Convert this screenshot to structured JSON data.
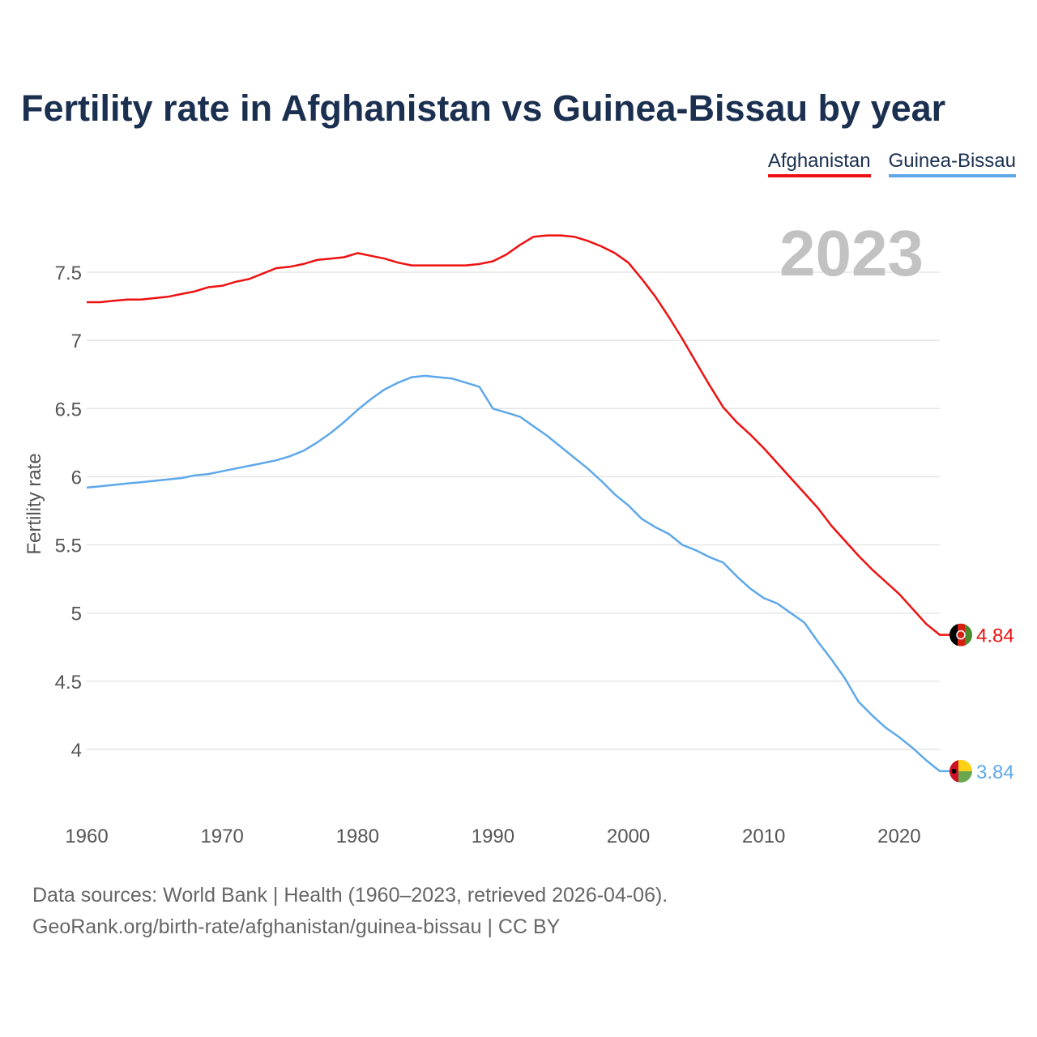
{
  "title": "Fertility rate in Afghanistan vs Guinea-Bissau by year",
  "year_badge": "2023",
  "legend": [
    {
      "label": "Afghanistan",
      "color": "#ee1111"
    },
    {
      "label": "Guinea-Bissau",
      "color": "#5ea8ea"
    }
  ],
  "footer": {
    "line1": "Data sources: World Bank | Health (1960–2023, retrieved 2026-04-06).",
    "line2": "GeoRank.org/birth-rate/afghanistan/guinea-bissau | CC BY"
  },
  "chart_data": {
    "type": "line",
    "title": "Fertility rate in Afghanistan vs Guinea-Bissau by year",
    "xlabel": "",
    "ylabel": "Fertility rate",
    "xlim": [
      1960,
      2023
    ],
    "ylim": [
      3.5,
      8.0
    ],
    "xticks": [
      1960,
      1970,
      1980,
      1990,
      2000,
      2010,
      2020
    ],
    "yticks": [
      4,
      4.5,
      5,
      5.5,
      6,
      6.5,
      7,
      7.5
    ],
    "ytick_labels": [
      "4",
      "4.5",
      "5",
      "5.5",
      "6",
      "6.5",
      "7",
      "7.5"
    ],
    "grid": true,
    "x": [
      1960,
      1961,
      1962,
      1963,
      1964,
      1965,
      1966,
      1967,
      1968,
      1969,
      1970,
      1971,
      1972,
      1973,
      1974,
      1975,
      1976,
      1977,
      1978,
      1979,
      1980,
      1981,
      1982,
      1983,
      1984,
      1985,
      1986,
      1987,
      1988,
      1989,
      1990,
      1991,
      1992,
      1993,
      1994,
      1995,
      1996,
      1997,
      1998,
      1999,
      2000,
      2001,
      2002,
      2003,
      2004,
      2005,
      2006,
      2007,
      2008,
      2009,
      2010,
      2011,
      2012,
      2013,
      2014,
      2015,
      2016,
      2017,
      2018,
      2019,
      2020,
      2021,
      2022,
      2023
    ],
    "series": [
      {
        "name": "Afghanistan",
        "color": "#ee1111",
        "end_label": "4.84",
        "values": [
          7.28,
          7.28,
          7.29,
          7.3,
          7.3,
          7.31,
          7.32,
          7.34,
          7.36,
          7.39,
          7.4,
          7.43,
          7.45,
          7.49,
          7.53,
          7.54,
          7.56,
          7.59,
          7.6,
          7.61,
          7.64,
          7.62,
          7.6,
          7.57,
          7.55,
          7.55,
          7.55,
          7.55,
          7.55,
          7.56,
          7.58,
          7.63,
          7.7,
          7.76,
          7.77,
          7.77,
          7.76,
          7.73,
          7.69,
          7.64,
          7.57,
          7.45,
          7.32,
          7.17,
          7.01,
          6.84,
          6.67,
          6.51,
          6.4,
          6.31,
          6.21,
          6.1,
          5.99,
          5.88,
          5.77,
          5.64,
          5.53,
          5.42,
          5.32,
          5.23,
          5.14,
          5.03,
          4.92,
          4.84
        ]
      },
      {
        "name": "Guinea-Bissau",
        "color": "#5ea8ea",
        "end_label": "3.84",
        "values": [
          5.92,
          5.93,
          5.94,
          5.95,
          5.96,
          5.97,
          5.98,
          5.99,
          6.01,
          6.02,
          6.04,
          6.06,
          6.08,
          6.1,
          6.12,
          6.15,
          6.19,
          6.25,
          6.32,
          6.4,
          6.49,
          6.57,
          6.64,
          6.69,
          6.73,
          6.74,
          6.73,
          6.72,
          6.69,
          6.66,
          6.5,
          6.47,
          6.44,
          6.37,
          6.3,
          6.22,
          6.14,
          6.06,
          5.97,
          5.87,
          5.79,
          5.69,
          5.63,
          5.58,
          5.5,
          5.46,
          5.41,
          5.37,
          5.27,
          5.18,
          5.11,
          5.07,
          5.0,
          4.93,
          4.79,
          4.66,
          4.52,
          4.35,
          4.25,
          4.16,
          4.09,
          4.01,
          3.92,
          3.84
        ]
      }
    ]
  }
}
